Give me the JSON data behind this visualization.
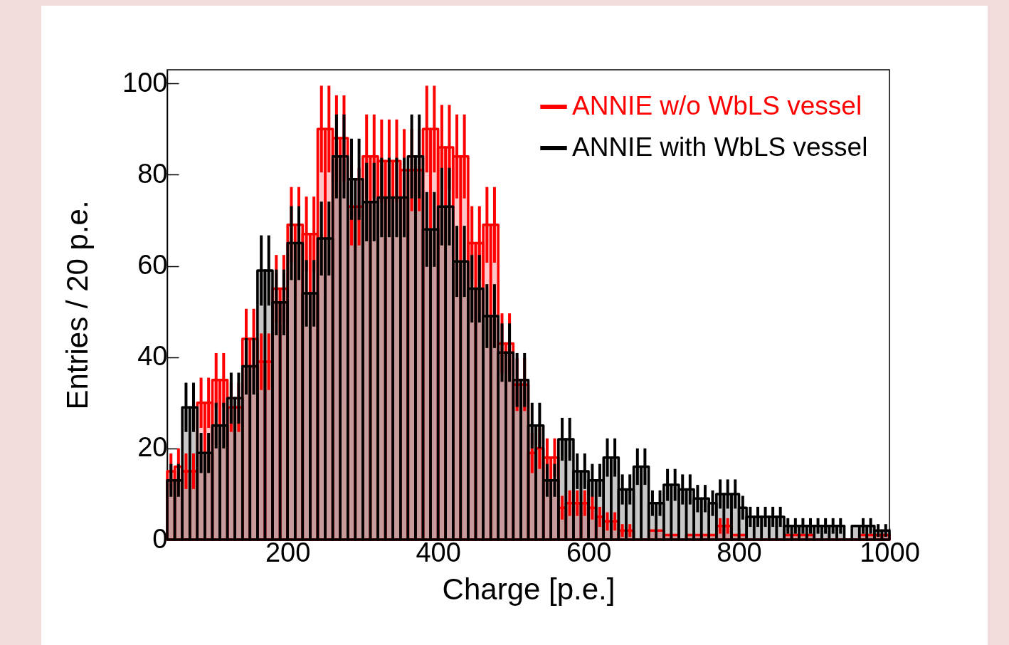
{
  "chart_data": {
    "type": "histogram",
    "xlabel": "Charge [p.e.]",
    "ylabel": "Entries / 20 p.e.",
    "bins": [
      40,
      50,
      60,
      70,
      80,
      90,
      100,
      110,
      120,
      130,
      140,
      150,
      160,
      170,
      180,
      190,
      200,
      210,
      220,
      230,
      240,
      250,
      260,
      270,
      280,
      290,
      300,
      310,
      320,
      330,
      340,
      350,
      360,
      370,
      380,
      390,
      400,
      410,
      420,
      430,
      440,
      450,
      460,
      470,
      480,
      490,
      500,
      510,
      520,
      530,
      540,
      550,
      560,
      570,
      580,
      590,
      600,
      610,
      620,
      630,
      640,
      650,
      660,
      670,
      680,
      690,
      700,
      710,
      720,
      730,
      740,
      750,
      760,
      770,
      780,
      790,
      800,
      810,
      820,
      830,
      840,
      850,
      860,
      870,
      880,
      890,
      900,
      910,
      920,
      930,
      940,
      950,
      960,
      970,
      980,
      990,
      1000
    ],
    "series": [
      {
        "name": "ANNIE w/o WbLS vessel",
        "color": "#ff0000",
        "values": [
          15,
          16,
          15,
          15,
          30,
          30,
          35,
          35,
          29,
          29,
          44,
          44,
          39,
          39,
          55,
          55,
          69,
          69,
          67,
          67,
          90,
          90,
          88,
          88,
          73,
          73,
          84,
          84,
          83,
          83,
          83,
          81,
          81,
          81,
          90,
          90,
          86,
          86,
          84,
          84,
          65,
          65,
          69,
          69,
          43,
          43,
          34,
          34,
          19,
          20,
          18,
          18,
          7,
          8,
          8,
          8,
          7,
          5,
          4,
          4,
          2,
          2,
          0,
          0,
          2,
          2,
          1,
          1,
          0,
          1,
          1,
          1,
          1,
          3,
          3,
          1,
          1,
          0,
          0,
          0,
          0,
          0,
          1,
          1,
          1,
          1,
          0,
          0,
          0,
          0,
          0,
          0,
          1,
          1,
          1,
          1
        ],
        "errors": [
          3.9,
          4,
          3.9,
          3.9,
          5.5,
          5.5,
          5.9,
          5.9,
          5.4,
          5.4,
          6.6,
          6.6,
          6.2,
          6.2,
          7.4,
          7.4,
          8.3,
          8.3,
          8.2,
          8.2,
          9.5,
          9.5,
          9.4,
          9.4,
          8.5,
          8.5,
          9.2,
          9.2,
          9.1,
          9.1,
          9.1,
          9,
          9,
          9,
          9.5,
          9.5,
          9.3,
          9.3,
          9.2,
          9.2,
          8.1,
          8.1,
          8.3,
          8.3,
          6.6,
          6.6,
          5.8,
          5.8,
          4.4,
          4.5,
          4.2,
          4.2,
          2.6,
          2.8,
          2.8,
          2.8,
          2.6,
          2.2,
          2,
          2,
          1.4,
          1.4,
          null,
          null,
          null,
          null,
          null,
          null,
          null,
          null,
          null,
          null,
          null,
          1.7,
          1.7,
          null,
          null,
          null,
          null,
          null,
          null,
          null,
          null,
          null,
          null,
          null,
          null,
          null,
          null,
          null,
          null,
          null,
          null,
          null,
          null,
          null
        ]
      },
      {
        "name": "ANNIE with WbLS vessel",
        "color": "#000000",
        "values": [
          13,
          13,
          29,
          29,
          19,
          19,
          25,
          25,
          31,
          31,
          38,
          38,
          59,
          59,
          52,
          52,
          65,
          65,
          54,
          54,
          66,
          66,
          84,
          84,
          79,
          79,
          74,
          74,
          75,
          75,
          75,
          75,
          84,
          84,
          68,
          68,
          73,
          73,
          61,
          61,
          55,
          55,
          49,
          49,
          41,
          41,
          35,
          35,
          25,
          25,
          13,
          13,
          22,
          22,
          15,
          15,
          13,
          13,
          18,
          18,
          11,
          11,
          16,
          16,
          8,
          8,
          12,
          12,
          11,
          11,
          9,
          9,
          8,
          10,
          10,
          10,
          7,
          5,
          5,
          5,
          5,
          5,
          3,
          3,
          3,
          3,
          3,
          3,
          3,
          3,
          0,
          3,
          3,
          3,
          2,
          2
        ],
        "errors": [
          3.6,
          3.6,
          5.4,
          5.4,
          4.4,
          4.4,
          5,
          5,
          5.6,
          5.6,
          6.2,
          6.2,
          7.7,
          7.7,
          7.2,
          7.2,
          8.1,
          8.1,
          7.3,
          7.3,
          8.1,
          8.1,
          9.2,
          9.2,
          8.9,
          8.9,
          8.6,
          8.6,
          8.7,
          8.7,
          8.7,
          8.7,
          9.2,
          9.2,
          8.2,
          8.2,
          8.5,
          8.5,
          7.8,
          7.8,
          7.4,
          7.4,
          7,
          7,
          6.4,
          6.4,
          5.9,
          5.9,
          5,
          5,
          3.6,
          3.6,
          4.7,
          4.7,
          3.9,
          3.9,
          3.6,
          3.6,
          4.2,
          4.2,
          3.3,
          3.3,
          4,
          4,
          2.8,
          2.8,
          3.5,
          3.5,
          3.3,
          3.3,
          3,
          3,
          2.8,
          3.2,
          3.2,
          3.2,
          2.6,
          2.2,
          2.2,
          2.2,
          2.2,
          2.2,
          1.7,
          1.7,
          1.7,
          1.7,
          1.7,
          1.7,
          1.7,
          1.7,
          null,
          null,
          1.7,
          1.7,
          1.4,
          1.4
        ]
      }
    ],
    "xlim": [
      40,
      1000
    ],
    "xticks": [
      200,
      400,
      600,
      800,
      1000
    ],
    "ylim": [
      0,
      103
    ],
    "yticks": [
      0,
      20,
      40,
      60,
      80,
      100
    ],
    "legend": "top right"
  }
}
